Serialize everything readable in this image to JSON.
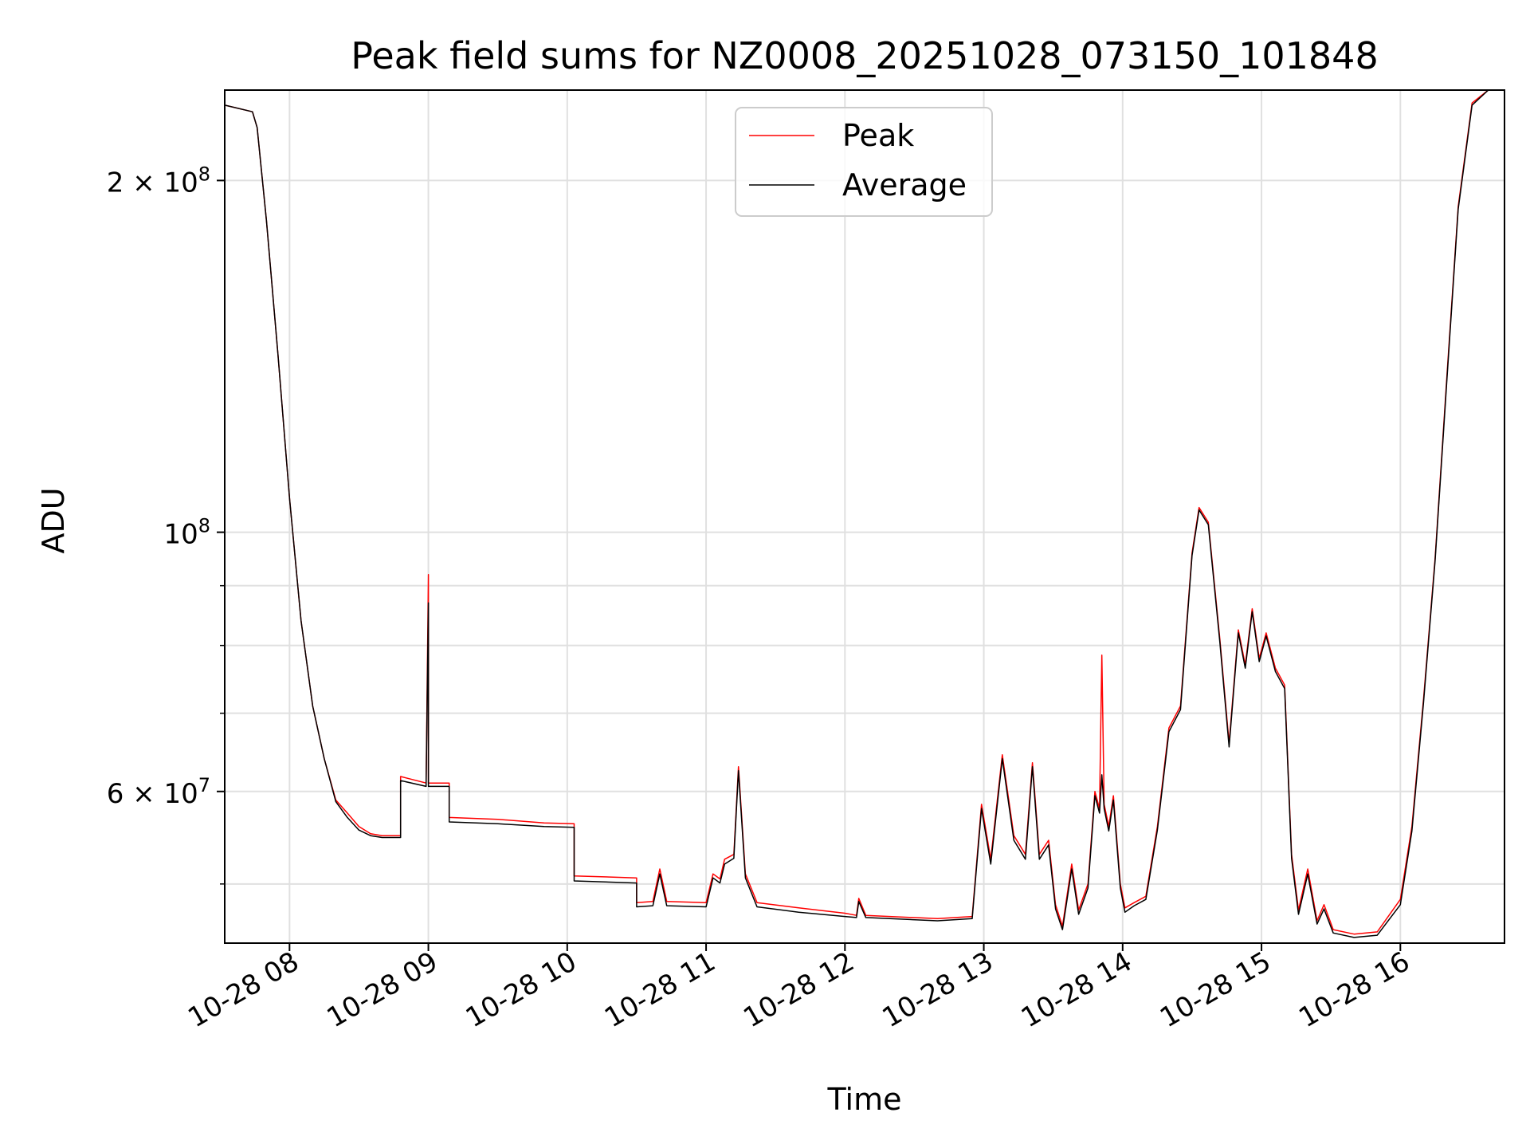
{
  "chart_data": {
    "type": "line",
    "title": "Peak field sums for NZ0008_20251028_073150_101848",
    "xlabel": "Time",
    "ylabel": "ADU",
    "y_scale": "log",
    "ylim": [
      44500000,
      239000000
    ],
    "xlim": [
      "2025-10-28 07:32",
      "2025-10-28 16:45"
    ],
    "grid": true,
    "legend_placement": "upper center",
    "x_ticks": [
      {
        "t": "2025-10-28 08:00",
        "label": "10-28 08"
      },
      {
        "t": "2025-10-28 09:00",
        "label": "10-28 09"
      },
      {
        "t": "2025-10-28 10:00",
        "label": "10-28 10"
      },
      {
        "t": "2025-10-28 11:00",
        "label": "10-28 11"
      },
      {
        "t": "2025-10-28 12:00",
        "label": "10-28 12"
      },
      {
        "t": "2025-10-28 13:00",
        "label": "10-28 13"
      },
      {
        "t": "2025-10-28 14:00",
        "label": "10-28 14"
      },
      {
        "t": "2025-10-28 15:00",
        "label": "10-28 15"
      },
      {
        "t": "2025-10-28 16:00",
        "label": "10-28 16"
      }
    ],
    "y_major_ticks": [
      {
        "v": 60000000,
        "mant": "6",
        "exp": "7"
      },
      {
        "v": 100000000,
        "mant": "",
        "exp": "8"
      },
      {
        "v": 200000000,
        "mant": "2",
        "exp": "8"
      }
    ],
    "y_minor_grid": [
      50000000,
      70000000,
      80000000,
      90000000
    ],
    "series": [
      {
        "name": "Peak",
        "color": "#ff0000",
        "points": [
          [
            "2025-10-28 07:32",
            232000000
          ],
          [
            "2025-10-28 07:44",
            229000000
          ],
          [
            "2025-10-28 07:46",
            222000000
          ],
          [
            "2025-10-28 07:50",
            185000000
          ],
          [
            "2025-10-28 07:55",
            142000000
          ],
          [
            "2025-10-28 08:00",
            107000000
          ],
          [
            "2025-10-28 08:05",
            84000000
          ],
          [
            "2025-10-28 08:10",
            71000000
          ],
          [
            "2025-10-28 08:15",
            64000000
          ],
          [
            "2025-10-28 08:20",
            59000000
          ],
          [
            "2025-10-28 08:25",
            57500000
          ],
          [
            "2025-10-28 08:30",
            56000000
          ],
          [
            "2025-10-28 08:35",
            55200000
          ],
          [
            "2025-10-28 08:40",
            55000000
          ],
          [
            "2025-10-28 08:48",
            55000000
          ],
          [
            "2025-10-28 08:48",
            61800000
          ],
          [
            "2025-10-28 08:59",
            61000000
          ],
          [
            "2025-10-28 09:00",
            92000000
          ],
          [
            "2025-10-28 09:00",
            61000000
          ],
          [
            "2025-10-28 09:09",
            61000000
          ],
          [
            "2025-10-28 09:09",
            57000000
          ],
          [
            "2025-10-28 09:30",
            56800000
          ],
          [
            "2025-10-28 09:50",
            56400000
          ],
          [
            "2025-10-28 10:03",
            56300000
          ],
          [
            "2025-10-28 10:03",
            50800000
          ],
          [
            "2025-10-28 10:30",
            50600000
          ],
          [
            "2025-10-28 10:30",
            48200000
          ],
          [
            "2025-10-28 10:37",
            48300000
          ],
          [
            "2025-10-28 10:40",
            51500000
          ],
          [
            "2025-10-28 10:43",
            48300000
          ],
          [
            "2025-10-28 11:00",
            48200000
          ],
          [
            "2025-10-28 11:03",
            51000000
          ],
          [
            "2025-10-28 11:06",
            50500000
          ],
          [
            "2025-10-28 11:08",
            52500000
          ],
          [
            "2025-10-28 11:12",
            53000000
          ],
          [
            "2025-10-28 11:14",
            63000000
          ],
          [
            "2025-10-28 11:17",
            51000000
          ],
          [
            "2025-10-28 11:22",
            48200000
          ],
          [
            "2025-10-28 11:40",
            47700000
          ],
          [
            "2025-10-28 12:00",
            47200000
          ],
          [
            "2025-10-28 12:05",
            47000000
          ],
          [
            "2025-10-28 12:06",
            48600000
          ],
          [
            "2025-10-28 12:09",
            47000000
          ],
          [
            "2025-10-28 12:40",
            46700000
          ],
          [
            "2025-10-28 12:55",
            46900000
          ],
          [
            "2025-10-28 12:59",
            58500000
          ],
          [
            "2025-10-28 13:03",
            52500000
          ],
          [
            "2025-10-28 13:08",
            64500000
          ],
          [
            "2025-10-28 13:13",
            55000000
          ],
          [
            "2025-10-28 13:18",
            53000000
          ],
          [
            "2025-10-28 13:21",
            63500000
          ],
          [
            "2025-10-28 13:24",
            53000000
          ],
          [
            "2025-10-28 13:28",
            54500000
          ],
          [
            "2025-10-28 13:31",
            48000000
          ],
          [
            "2025-10-28 13:34",
            46000000
          ],
          [
            "2025-10-28 13:38",
            52000000
          ],
          [
            "2025-10-28 13:41",
            47500000
          ],
          [
            "2025-10-28 13:45",
            50000000
          ],
          [
            "2025-10-28 13:48",
            60000000
          ],
          [
            "2025-10-28 13:50",
            58000000
          ],
          [
            "2025-10-28 13:51",
            78500000
          ],
          [
            "2025-10-28 13:52",
            58500000
          ],
          [
            "2025-10-28 13:54",
            56000000
          ],
          [
            "2025-10-28 13:56",
            59500000
          ],
          [
            "2025-10-28 13:59",
            50000000
          ],
          [
            "2025-10-28 14:01",
            47700000
          ],
          [
            "2025-10-28 14:05",
            48200000
          ],
          [
            "2025-10-28 14:10",
            48800000
          ],
          [
            "2025-10-28 14:15",
            56000000
          ],
          [
            "2025-10-28 14:20",
            68000000
          ],
          [
            "2025-10-28 14:25",
            71000000
          ],
          [
            "2025-10-28 14:30",
            96000000
          ],
          [
            "2025-10-28 14:33",
            105000000
          ],
          [
            "2025-10-28 14:37",
            102000000
          ],
          [
            "2025-10-28 14:42",
            81000000
          ],
          [
            "2025-10-28 14:46",
            66000000
          ],
          [
            "2025-10-28 14:50",
            82500000
          ],
          [
            "2025-10-28 14:53",
            77000000
          ],
          [
            "2025-10-28 14:56",
            86000000
          ],
          [
            "2025-10-28 14:59",
            78000000
          ],
          [
            "2025-10-28 15:02",
            82000000
          ],
          [
            "2025-10-28 15:06",
            76500000
          ],
          [
            "2025-10-28 15:10",
            74000000
          ],
          [
            "2025-10-28 15:13",
            53000000
          ],
          [
            "2025-10-28 15:16",
            47500000
          ],
          [
            "2025-10-28 15:20",
            51500000
          ],
          [
            "2025-10-28 15:24",
            46500000
          ],
          [
            "2025-10-28 15:27",
            48000000
          ],
          [
            "2025-10-28 15:31",
            45700000
          ],
          [
            "2025-10-28 15:40",
            45300000
          ],
          [
            "2025-10-28 15:50",
            45500000
          ],
          [
            "2025-10-28 16:00",
            48500000
          ],
          [
            "2025-10-28 16:05",
            56000000
          ],
          [
            "2025-10-28 16:10",
            72000000
          ],
          [
            "2025-10-28 16:15",
            95000000
          ],
          [
            "2025-10-28 16:20",
            135000000
          ],
          [
            "2025-10-28 16:25",
            190000000
          ],
          [
            "2025-10-28 16:31",
            233000000
          ],
          [
            "2025-10-28 16:38",
            239000000
          ]
        ]
      },
      {
        "name": "Average",
        "color": "#000000",
        "points": [
          [
            "2025-10-28 07:32",
            232000000
          ],
          [
            "2025-10-28 07:44",
            229000000
          ],
          [
            "2025-10-28 07:46",
            222000000
          ],
          [
            "2025-10-28 07:50",
            185000000
          ],
          [
            "2025-10-28 07:55",
            142000000
          ],
          [
            "2025-10-28 08:00",
            107000000
          ],
          [
            "2025-10-28 08:05",
            84000000
          ],
          [
            "2025-10-28 08:10",
            71000000
          ],
          [
            "2025-10-28 08:15",
            64000000
          ],
          [
            "2025-10-28 08:20",
            58800000
          ],
          [
            "2025-10-28 08:25",
            57000000
          ],
          [
            "2025-10-28 08:30",
            55600000
          ],
          [
            "2025-10-28 08:35",
            55000000
          ],
          [
            "2025-10-28 08:40",
            54800000
          ],
          [
            "2025-10-28 08:48",
            54800000
          ],
          [
            "2025-10-28 08:48",
            61300000
          ],
          [
            "2025-10-28 08:59",
            60600000
          ],
          [
            "2025-10-28 09:00",
            87000000
          ],
          [
            "2025-10-28 09:00",
            60600000
          ],
          [
            "2025-10-28 09:09",
            60600000
          ],
          [
            "2025-10-28 09:09",
            56500000
          ],
          [
            "2025-10-28 09:30",
            56300000
          ],
          [
            "2025-10-28 09:50",
            56000000
          ],
          [
            "2025-10-28 10:03",
            55900000
          ],
          [
            "2025-10-28 10:03",
            50300000
          ],
          [
            "2025-10-28 10:30",
            50100000
          ],
          [
            "2025-10-28 10:30",
            47800000
          ],
          [
            "2025-10-28 10:37",
            47900000
          ],
          [
            "2025-10-28 10:40",
            51000000
          ],
          [
            "2025-10-28 10:43",
            47900000
          ],
          [
            "2025-10-28 11:00",
            47800000
          ],
          [
            "2025-10-28 11:03",
            50600000
          ],
          [
            "2025-10-28 11:06",
            50100000
          ],
          [
            "2025-10-28 11:08",
            52000000
          ],
          [
            "2025-10-28 11:12",
            52600000
          ],
          [
            "2025-10-28 11:14",
            62500000
          ],
          [
            "2025-10-28 11:17",
            50600000
          ],
          [
            "2025-10-28 11:22",
            47800000
          ],
          [
            "2025-10-28 11:40",
            47300000
          ],
          [
            "2025-10-28 12:00",
            46900000
          ],
          [
            "2025-10-28 12:05",
            46800000
          ],
          [
            "2025-10-28 12:06",
            48300000
          ],
          [
            "2025-10-28 12:09",
            46800000
          ],
          [
            "2025-10-28 12:40",
            46500000
          ],
          [
            "2025-10-28 12:55",
            46700000
          ],
          [
            "2025-10-28 12:59",
            58000000
          ],
          [
            "2025-10-28 13:03",
            52000000
          ],
          [
            "2025-10-28 13:08",
            64000000
          ],
          [
            "2025-10-28 13:13",
            54500000
          ],
          [
            "2025-10-28 13:18",
            52500000
          ],
          [
            "2025-10-28 13:21",
            63000000
          ],
          [
            "2025-10-28 13:24",
            52500000
          ],
          [
            "2025-10-28 13:28",
            54000000
          ],
          [
            "2025-10-28 13:31",
            47600000
          ],
          [
            "2025-10-28 13:34",
            45700000
          ],
          [
            "2025-10-28 13:38",
            51500000
          ],
          [
            "2025-10-28 13:41",
            47100000
          ],
          [
            "2025-10-28 13:45",
            49600000
          ],
          [
            "2025-10-28 13:48",
            59500000
          ],
          [
            "2025-10-28 13:50",
            57500000
          ],
          [
            "2025-10-28 13:51",
            62000000
          ],
          [
            "2025-10-28 13:52",
            58000000
          ],
          [
            "2025-10-28 13:54",
            55500000
          ],
          [
            "2025-10-28 13:56",
            59000000
          ],
          [
            "2025-10-28 13:59",
            49600000
          ],
          [
            "2025-10-28 14:01",
            47300000
          ],
          [
            "2025-10-28 14:05",
            47900000
          ],
          [
            "2025-10-28 14:10",
            48500000
          ],
          [
            "2025-10-28 14:15",
            55600000
          ],
          [
            "2025-10-28 14:20",
            67500000
          ],
          [
            "2025-10-28 14:25",
            70500000
          ],
          [
            "2025-10-28 14:30",
            95500000
          ],
          [
            "2025-10-28 14:33",
            104500000
          ],
          [
            "2025-10-28 14:37",
            101500000
          ],
          [
            "2025-10-28 14:42",
            80500000
          ],
          [
            "2025-10-28 14:46",
            65500000
          ],
          [
            "2025-10-28 14:50",
            82000000
          ],
          [
            "2025-10-28 14:53",
            76500000
          ],
          [
            "2025-10-28 14:56",
            85500000
          ],
          [
            "2025-10-28 14:59",
            77500000
          ],
          [
            "2025-10-28 15:02",
            81500000
          ],
          [
            "2025-10-28 15:06",
            76000000
          ],
          [
            "2025-10-28 15:10",
            73500000
          ],
          [
            "2025-10-28 15:13",
            52600000
          ],
          [
            "2025-10-28 15:16",
            47100000
          ],
          [
            "2025-10-28 15:20",
            51000000
          ],
          [
            "2025-10-28 15:24",
            46200000
          ],
          [
            "2025-10-28 15:27",
            47600000
          ],
          [
            "2025-10-28 15:31",
            45400000
          ],
          [
            "2025-10-28 15:40",
            45000000
          ],
          [
            "2025-10-28 15:50",
            45200000
          ],
          [
            "2025-10-28 16:00",
            48000000
          ],
          [
            "2025-10-28 16:05",
            55500000
          ],
          [
            "2025-10-28 16:10",
            71500000
          ],
          [
            "2025-10-28 16:15",
            94500000
          ],
          [
            "2025-10-28 16:20",
            134000000
          ],
          [
            "2025-10-28 16:25",
            189000000
          ],
          [
            "2025-10-28 16:31",
            232000000
          ],
          [
            "2025-10-28 16:38",
            239000000
          ]
        ]
      }
    ]
  }
}
